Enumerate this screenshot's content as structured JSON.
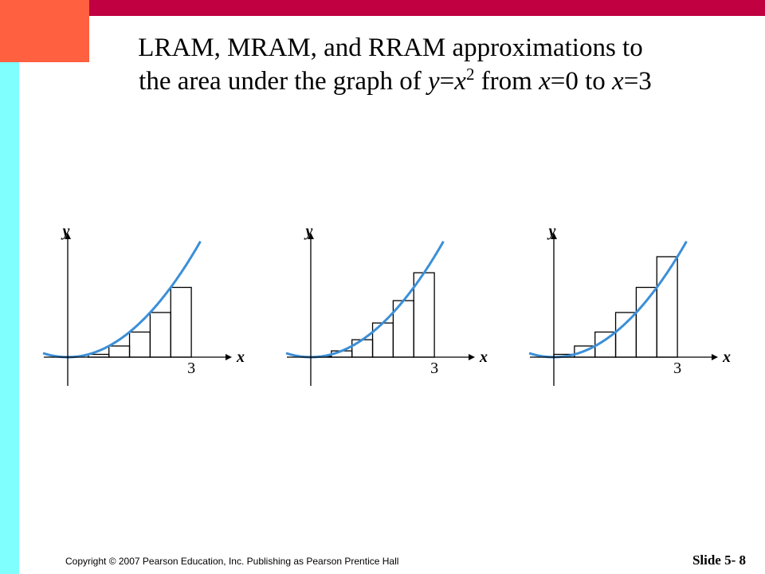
{
  "title": {
    "line1": "LRAM, MRAM, and RRAM approximations to",
    "line2": [
      "the area under the graph of ",
      "y",
      "=",
      "x",
      "2",
      " from ",
      "x",
      "=0 to ",
      "x",
      "=3"
    ]
  },
  "panels": [
    {
      "y_label": "y",
      "x_label": "x",
      "tick_label": "3"
    },
    {
      "y_label": "y",
      "x_label": "x",
      "tick_label": "3"
    },
    {
      "y_label": "y",
      "x_label": "x",
      "tick_label": "3"
    }
  ],
  "footer": {
    "copyright": "Copyright © 2007 Pearson Education, Inc. Publishing as Pearson Prentice Hall",
    "slide": "Slide 5- 8"
  }
}
